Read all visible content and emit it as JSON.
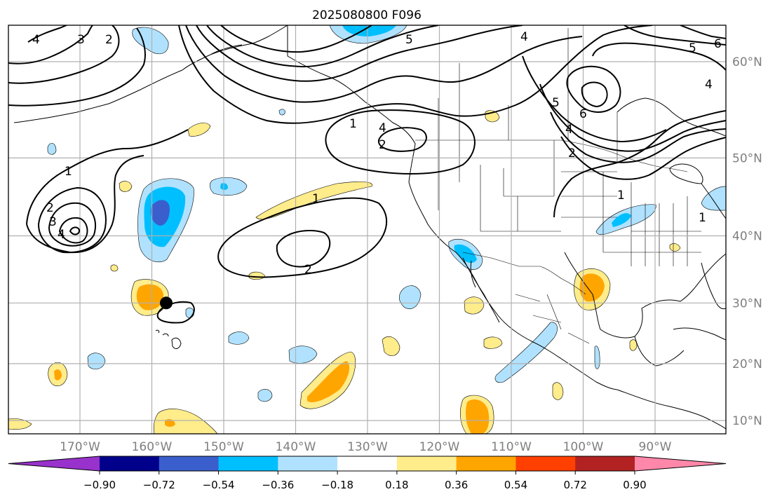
{
  "title": "2025080800 F096",
  "map": {
    "lon_range": [
      -180,
      -80
    ],
    "lat_range": [
      8,
      65
    ],
    "lon_ticks": [
      {
        "value": -170,
        "label": "170°W"
      },
      {
        "value": -160,
        "label": "160°W"
      },
      {
        "value": -150,
        "label": "150°W"
      },
      {
        "value": -140,
        "label": "140°W"
      },
      {
        "value": -130,
        "label": "130°W"
      },
      {
        "value": -120,
        "label": "120°W"
      },
      {
        "value": -110,
        "label": "110°W"
      },
      {
        "value": -100,
        "label": "100°W"
      },
      {
        "value": -90,
        "label": "90°W"
      }
    ],
    "lat_ticks": [
      {
        "value": 60,
        "label": "60°N"
      },
      {
        "value": 50,
        "label": "50°N"
      },
      {
        "value": 40,
        "label": "40°N"
      },
      {
        "value": 30,
        "label": "30°N"
      },
      {
        "value": 20,
        "label": "20°N"
      },
      {
        "value": 10,
        "label": "10°N"
      }
    ],
    "grid": true,
    "marker": {
      "lon": -158,
      "lat": 30
    },
    "contour_labels": [
      "1",
      "2",
      "3",
      "4",
      "5",
      "6"
    ]
  },
  "colorbar": {
    "labels": [
      "−0.90",
      "−0.72",
      "−0.54",
      "−0.36",
      "−0.18",
      "0.18",
      "0.36",
      "0.54",
      "0.72",
      "0.90"
    ],
    "colors": [
      "#9932cc",
      "#00008b",
      "#3a5fcd",
      "#00bfff",
      "#b0e2ff",
      "#ffffff",
      "#ffec8b",
      "#ffa500",
      "#ff4000",
      "#b22222",
      "#ff88aa"
    ],
    "extend": "both"
  }
}
